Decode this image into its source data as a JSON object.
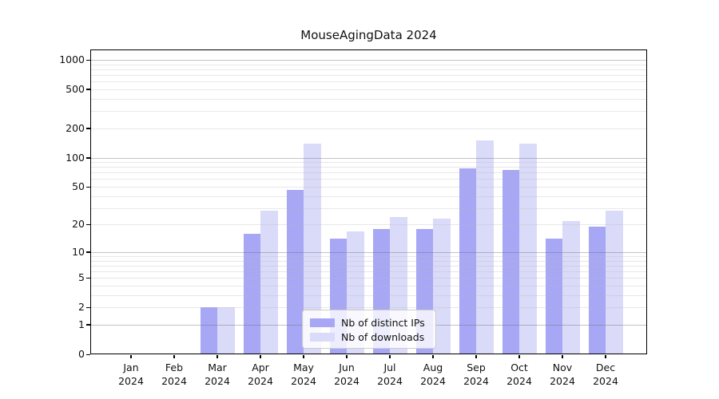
{
  "chart_data": {
    "type": "bar",
    "title": "MouseAgingData 2024",
    "categories": [
      "Jan",
      "Feb",
      "Mar",
      "Apr",
      "May",
      "Jun",
      "Jul",
      "Aug",
      "Sep",
      "Oct",
      "Nov",
      "Dec"
    ],
    "year_label": "2024",
    "series": [
      {
        "name": "Nb of distinct IPs",
        "color": "#a7a7f5",
        "values": [
          0,
          0,
          2,
          16,
          46,
          14,
          18,
          18,
          77,
          75,
          14,
          19
        ]
      },
      {
        "name": "Nb of downloads",
        "color": "#dadaf9",
        "values": [
          0,
          0,
          2,
          28,
          140,
          17,
          24,
          23,
          150,
          140,
          22,
          28
        ]
      }
    ],
    "yscale": "log1p",
    "yticks": [
      0,
      1,
      2,
      5,
      10,
      20,
      50,
      100,
      200,
      500,
      1000
    ],
    "minor_gridlines": [
      2,
      3,
      4,
      5,
      6,
      7,
      8,
      9,
      20,
      30,
      40,
      50,
      60,
      70,
      80,
      90,
      200,
      300,
      400,
      500,
      600,
      700,
      800,
      900
    ],
    "major_gridlines": [
      1,
      10,
      100,
      1000
    ],
    "ylim": [
      0,
      1276
    ],
    "grid": true,
    "legend_position": "lower-center"
  }
}
